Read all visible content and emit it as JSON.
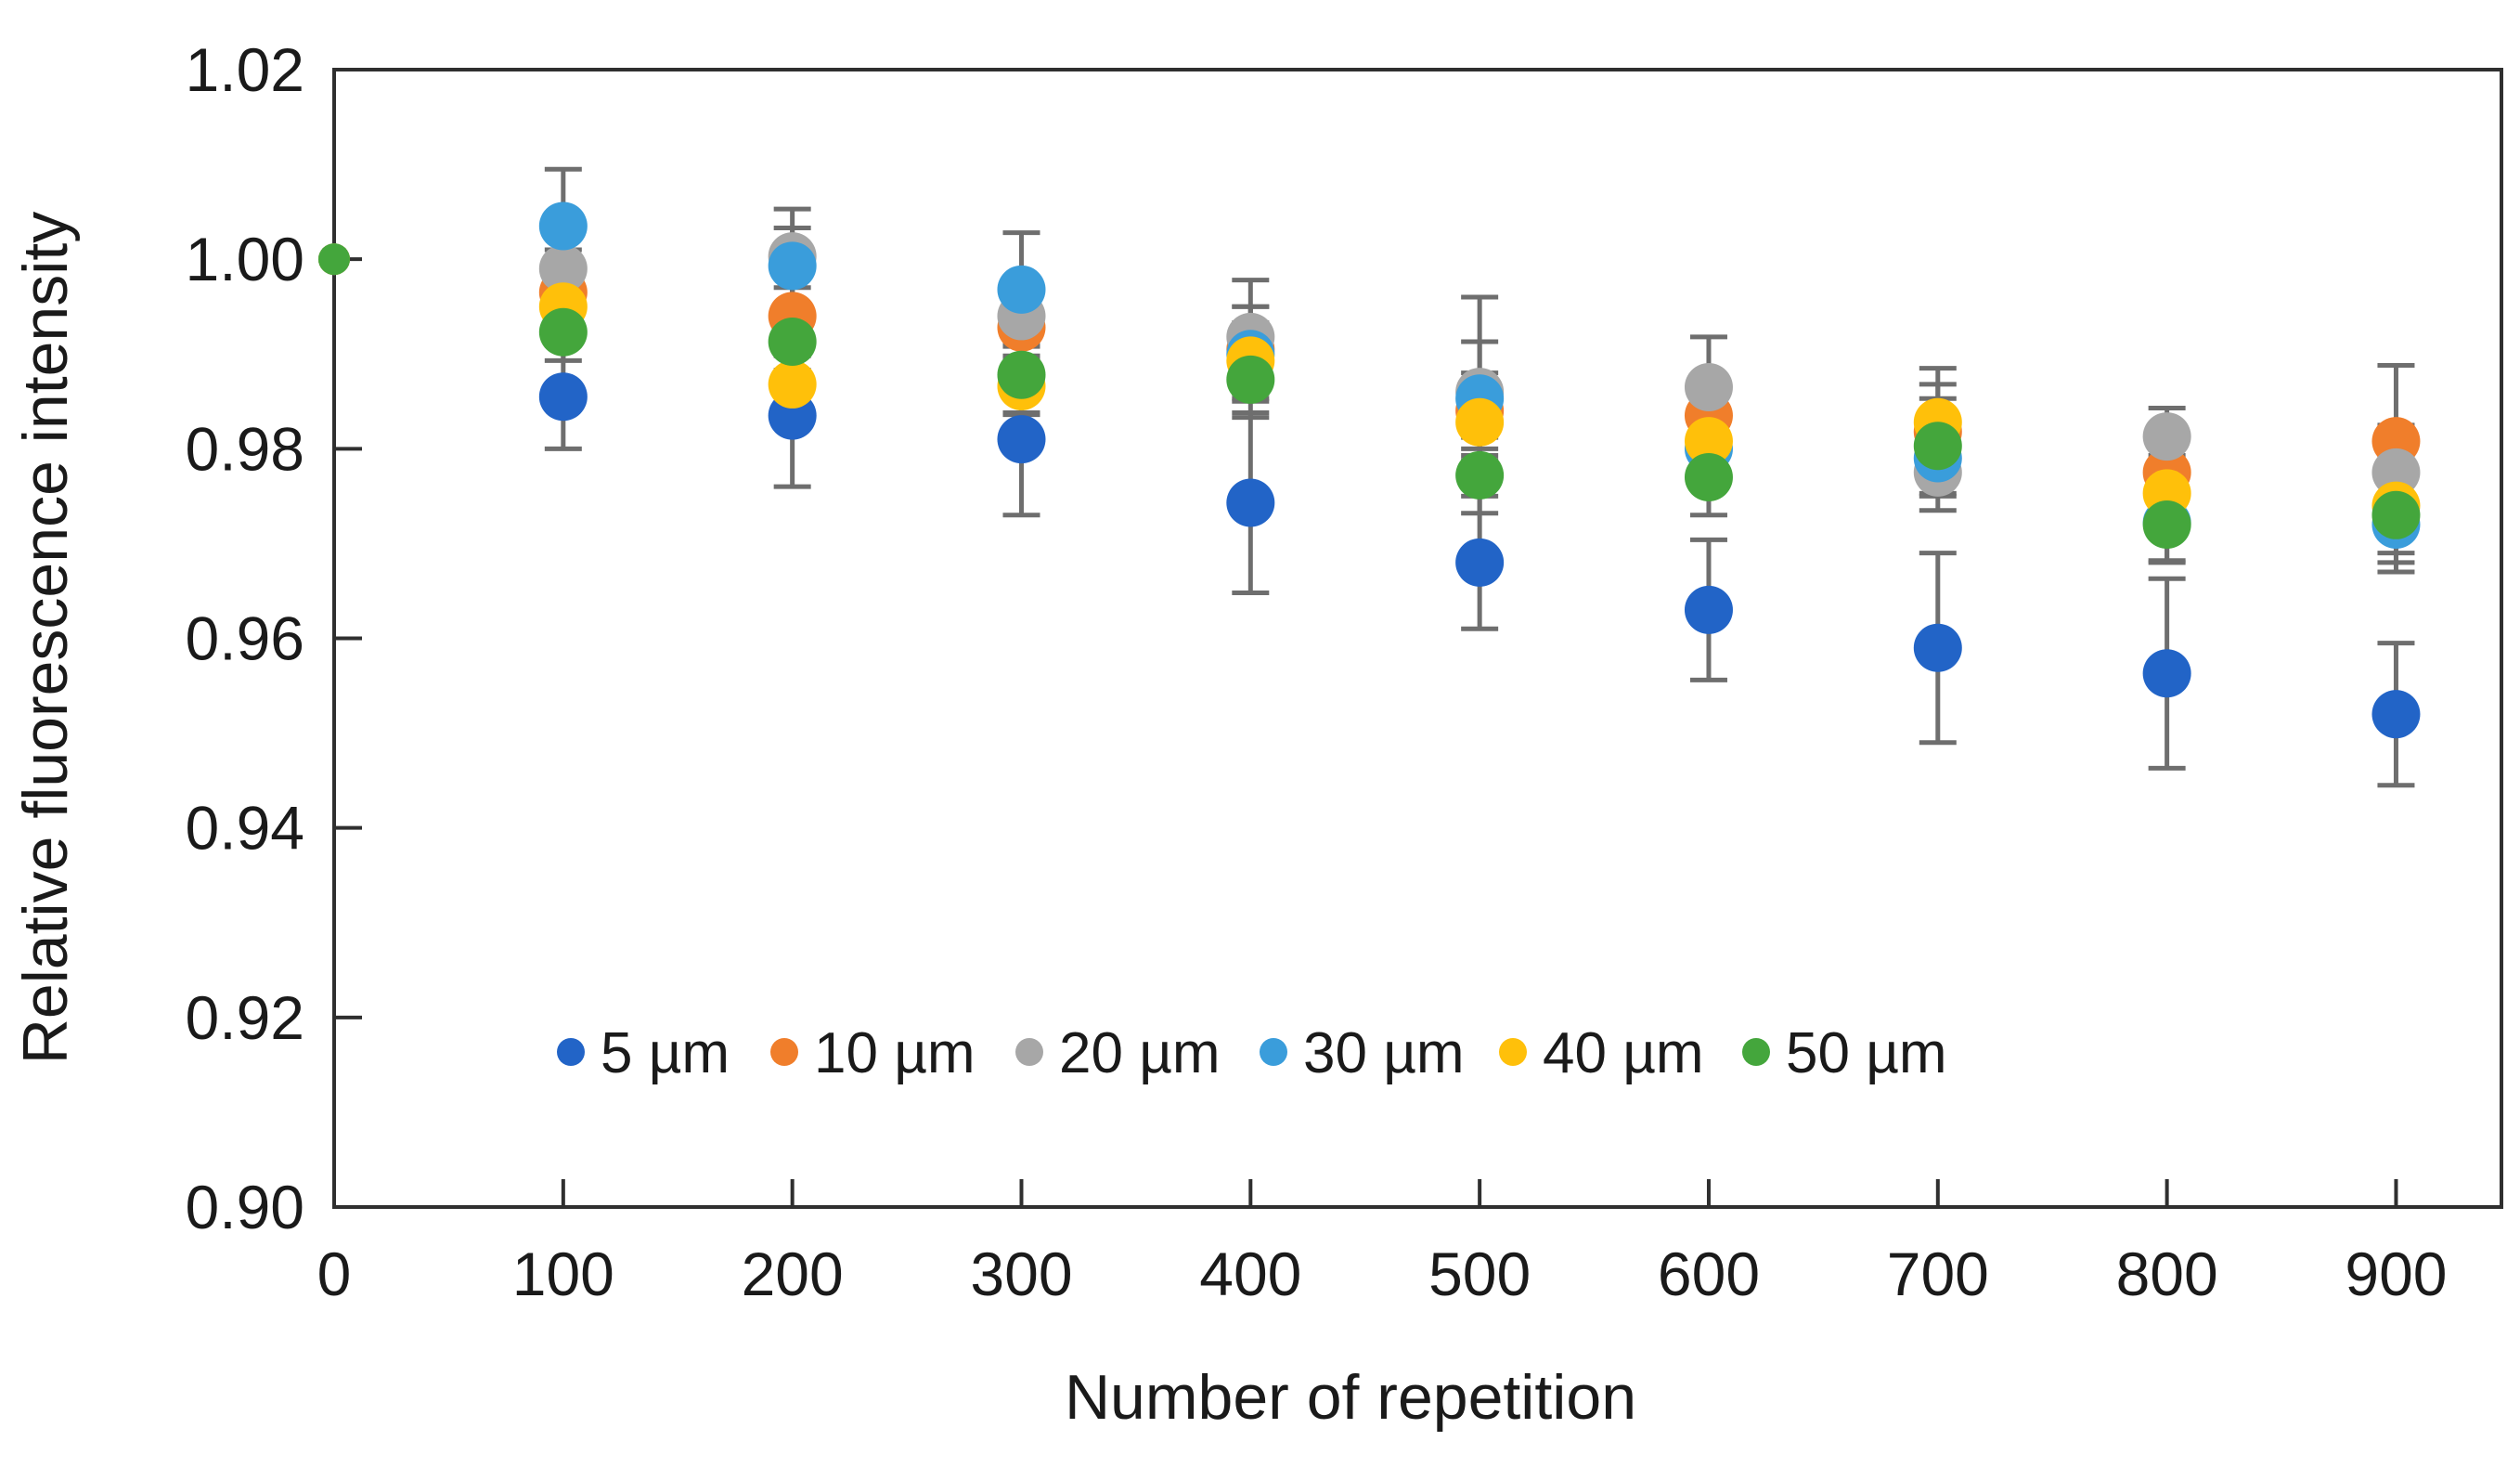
{
  "page": {
    "background": "#ffffff"
  },
  "chart_data": {
    "type": "scatter",
    "title": "",
    "xlabel": "Number of repetition",
    "ylabel": "Relative fluorescence intensity",
    "x_tick_labels": [
      "0",
      "100",
      "200",
      "300",
      "400",
      "500",
      "600",
      "700",
      "800",
      "900"
    ],
    "y_tick_labels": [
      "1.02",
      "1.00",
      "0.98",
      "0.96",
      "0.94",
      "0.92",
      "0.90"
    ],
    "xlim": [
      0,
      946
    ],
    "ylim": [
      0.9,
      1.02
    ],
    "grid": false,
    "legend_position": "inside-bottom-center",
    "axis_color": "#2f2f2f",
    "error_bar_color": "#6e6e6e",
    "text_color": "#1a1a1a",
    "categories": [
      0,
      100,
      200,
      300,
      400,
      500,
      600,
      700,
      800,
      900
    ],
    "series": [
      {
        "name": "5 µm",
        "color": "#2264c7",
        "values": [
          1.0,
          0.9855,
          0.9835,
          0.981,
          0.9743,
          0.968,
          0.963,
          0.959,
          0.9563,
          0.952
        ],
        "errors": [
          0,
          0.0055,
          0.0075,
          0.008,
          0.0095,
          0.007,
          0.0074,
          0.01,
          0.01,
          0.0075
        ]
      },
      {
        "name": "10 µm",
        "color": "#f07e2b",
        "values": [
          1.0,
          0.9965,
          0.994,
          0.9928,
          0.9905,
          0.984,
          0.9835,
          0.9818,
          0.9775,
          0.9808
        ],
        "errors": [
          0,
          0.0025,
          0.003,
          0.003,
          0.0045,
          0.004,
          0.004,
          0.005,
          0.004,
          0.008
        ]
      },
      {
        "name": "20 µm",
        "color": "#a7a7a7",
        "values": [
          1.0,
          0.999,
          1.0003,
          0.994,
          0.9918,
          0.986,
          0.9865,
          0.9775,
          0.9813,
          0.9775
        ],
        "errors": [
          0,
          0.002,
          0.005,
          0.003,
          0.006,
          0.01,
          0.0053,
          0.004,
          0.003,
          0.005
        ]
      },
      {
        "name": "30 µm",
        "color": "#3a9ddb",
        "values": [
          1.0,
          1.0035,
          0.9993,
          0.9968,
          0.99,
          0.9853,
          0.98,
          0.979,
          0.9722,
          0.972
        ],
        "errors": [
          0,
          0.006,
          0.004,
          0.006,
          0.005,
          0.006,
          0.004,
          0.004,
          0.004,
          0.005
        ]
      },
      {
        "name": "40 µm",
        "color": "#ffc00a",
        "values": [
          1.0,
          0.995,
          0.9868,
          0.9866,
          0.9893,
          0.9828,
          0.9808,
          0.9828,
          0.9753,
          0.974
        ],
        "errors": [
          0,
          0.0025,
          0.003,
          0.003,
          0.004,
          0.004,
          0.004,
          0.0057,
          0.004,
          0.005
        ]
      },
      {
        "name": "50 µm",
        "color": "#44a63c",
        "values": [
          1.0,
          0.9923,
          0.9913,
          0.9878,
          0.9873,
          0.9772,
          0.977,
          0.9803,
          0.972,
          0.973
        ],
        "errors": [
          0,
          0.003,
          0.003,
          0.004,
          0.004,
          0.004,
          0.004,
          0.005,
          0.004,
          0.005
        ]
      }
    ]
  }
}
